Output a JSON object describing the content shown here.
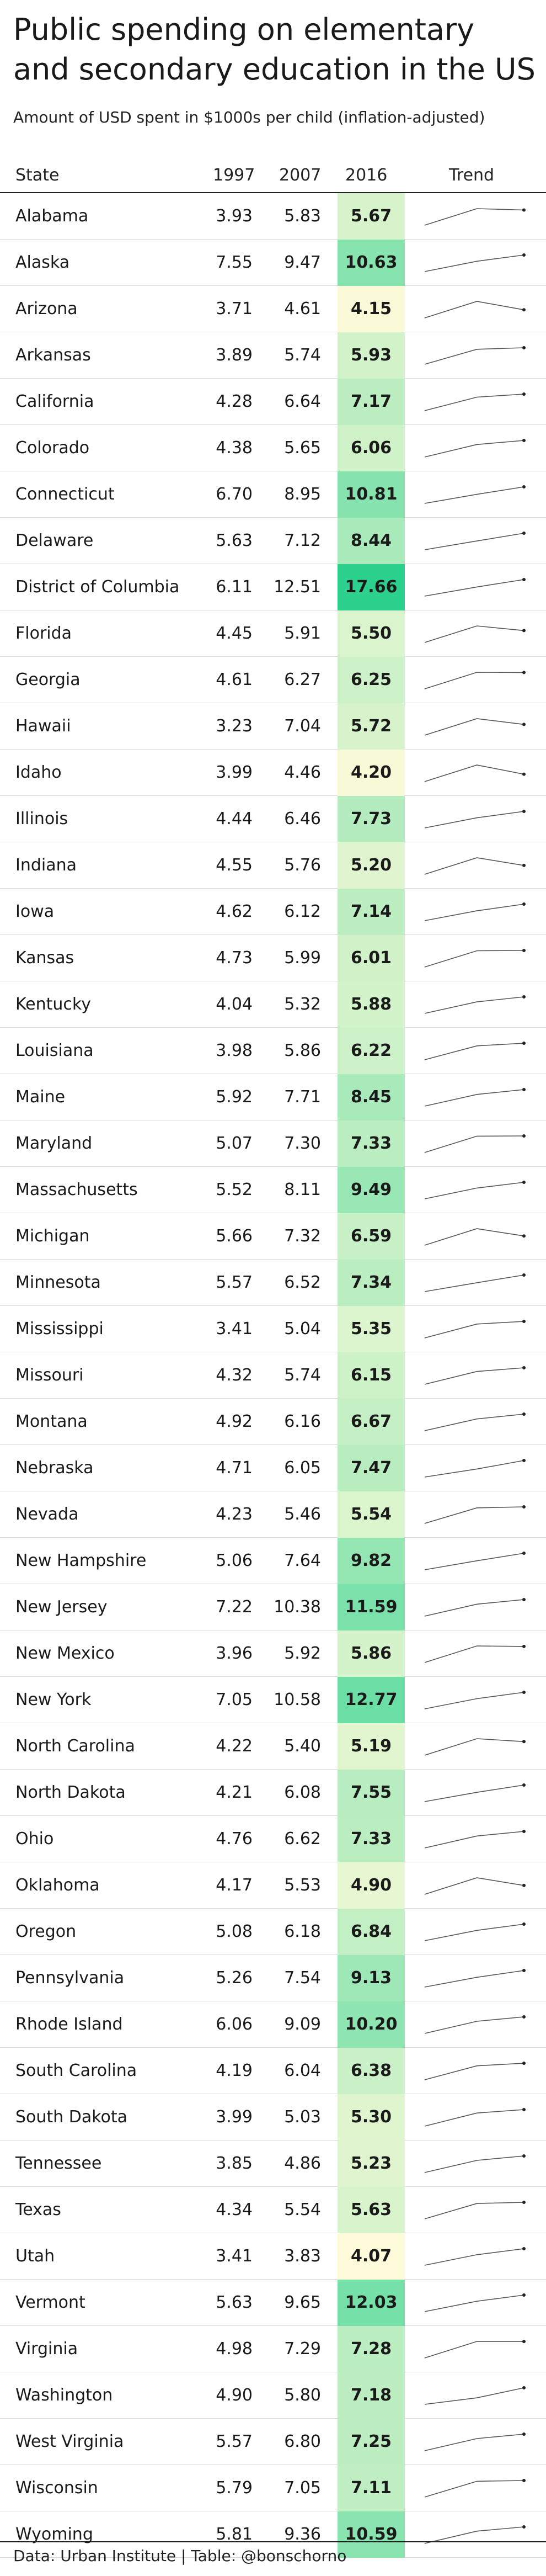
{
  "title": "Public spending on elementary and secondary education in the US",
  "subtitle": "Amount of USD spent in $1000s per child (inflation-adjusted)",
  "columns": {
    "state": "State",
    "y1997": "1997",
    "y2007": "2007",
    "y2016": "2016",
    "trend": "Trend"
  },
  "footer": "Data: Urban Institute | Table: @bonschorno",
  "colors": {
    "low": "#fdfbd9",
    "high": "#2cd18e",
    "line": "#555555",
    "rule": "#222222"
  },
  "chart_data": {
    "type": "table",
    "columns": [
      "State",
      "1997",
      "2007",
      "2016",
      "Trend"
    ],
    "highlight_column": "2016",
    "rows": [
      {
        "state": "Alabama",
        "y1997": "3.93",
        "y2007": "5.83",
        "y2016": "5.67"
      },
      {
        "state": "Alaska",
        "y1997": "7.55",
        "y2007": "9.47",
        "y2016": "10.63"
      },
      {
        "state": "Arizona",
        "y1997": "3.71",
        "y2007": "4.61",
        "y2016": "4.15"
      },
      {
        "state": "Arkansas",
        "y1997": "3.89",
        "y2007": "5.74",
        "y2016": "5.93"
      },
      {
        "state": "California",
        "y1997": "4.28",
        "y2007": "6.64",
        "y2016": "7.17"
      },
      {
        "state": "Colorado",
        "y1997": "4.38",
        "y2007": "5.65",
        "y2016": "6.06"
      },
      {
        "state": "Connecticut",
        "y1997": "6.70",
        "y2007": "8.95",
        "y2016": "10.81"
      },
      {
        "state": "Delaware",
        "y1997": "5.63",
        "y2007": "7.12",
        "y2016": "8.44"
      },
      {
        "state": "District of Columbia",
        "y1997": "6.11",
        "y2007": "12.51",
        "y2016": "17.66"
      },
      {
        "state": "Florida",
        "y1997": "4.45",
        "y2007": "5.91",
        "y2016": "5.50"
      },
      {
        "state": "Georgia",
        "y1997": "4.61",
        "y2007": "6.27",
        "y2016": "6.25"
      },
      {
        "state": "Hawaii",
        "y1997": "3.23",
        "y2007": "7.04",
        "y2016": "5.72"
      },
      {
        "state": "Idaho",
        "y1997": "3.99",
        "y2007": "4.46",
        "y2016": "4.20"
      },
      {
        "state": "Illinois",
        "y1997": "4.44",
        "y2007": "6.46",
        "y2016": "7.73"
      },
      {
        "state": "Indiana",
        "y1997": "4.55",
        "y2007": "5.76",
        "y2016": "5.20"
      },
      {
        "state": "Iowa",
        "y1997": "4.62",
        "y2007": "6.12",
        "y2016": "7.14"
      },
      {
        "state": "Kansas",
        "y1997": "4.73",
        "y2007": "5.99",
        "y2016": "6.01"
      },
      {
        "state": "Kentucky",
        "y1997": "4.04",
        "y2007": "5.32",
        "y2016": "5.88"
      },
      {
        "state": "Louisiana",
        "y1997": "3.98",
        "y2007": "5.86",
        "y2016": "6.22"
      },
      {
        "state": "Maine",
        "y1997": "5.92",
        "y2007": "7.71",
        "y2016": "8.45"
      },
      {
        "state": "Maryland",
        "y1997": "5.07",
        "y2007": "7.30",
        "y2016": "7.33"
      },
      {
        "state": "Massachusetts",
        "y1997": "5.52",
        "y2007": "8.11",
        "y2016": "9.49"
      },
      {
        "state": "Michigan",
        "y1997": "5.66",
        "y2007": "7.32",
        "y2016": "6.59"
      },
      {
        "state": "Minnesota",
        "y1997": "5.57",
        "y2007": "6.52",
        "y2016": "7.34"
      },
      {
        "state": "Mississippi",
        "y1997": "3.41",
        "y2007": "5.04",
        "y2016": "5.35"
      },
      {
        "state": "Missouri",
        "y1997": "4.32",
        "y2007": "5.74",
        "y2016": "6.15"
      },
      {
        "state": "Montana",
        "y1997": "4.92",
        "y2007": "6.16",
        "y2016": "6.67"
      },
      {
        "state": "Nebraska",
        "y1997": "4.71",
        "y2007": "6.05",
        "y2016": "7.47"
      },
      {
        "state": "Nevada",
        "y1997": "4.23",
        "y2007": "5.46",
        "y2016": "5.54"
      },
      {
        "state": "New Hampshire",
        "y1997": "5.06",
        "y2007": "7.64",
        "y2016": "9.82"
      },
      {
        "state": "New Jersey",
        "y1997": "7.22",
        "y2007": "10.38",
        "y2016": "11.59"
      },
      {
        "state": "New Mexico",
        "y1997": "3.96",
        "y2007": "5.92",
        "y2016": "5.86"
      },
      {
        "state": "New York",
        "y1997": "7.05",
        "y2007": "10.58",
        "y2016": "12.77"
      },
      {
        "state": "North Carolina",
        "y1997": "4.22",
        "y2007": "5.40",
        "y2016": "5.19"
      },
      {
        "state": "North Dakota",
        "y1997": "4.21",
        "y2007": "6.08",
        "y2016": "7.55"
      },
      {
        "state": "Ohio",
        "y1997": "4.76",
        "y2007": "6.62",
        "y2016": "7.33"
      },
      {
        "state": "Oklahoma",
        "y1997": "4.17",
        "y2007": "5.53",
        "y2016": "4.90"
      },
      {
        "state": "Oregon",
        "y1997": "5.08",
        "y2007": "6.18",
        "y2016": "6.84"
      },
      {
        "state": "Pennsylvania",
        "y1997": "5.26",
        "y2007": "7.54",
        "y2016": "9.13"
      },
      {
        "state": "Rhode Island",
        "y1997": "6.06",
        "y2007": "9.09",
        "y2016": "10.20"
      },
      {
        "state": "South Carolina",
        "y1997": "4.19",
        "y2007": "6.04",
        "y2016": "6.38"
      },
      {
        "state": "South Dakota",
        "y1997": "3.99",
        "y2007": "5.03",
        "y2016": "5.30"
      },
      {
        "state": "Tennessee",
        "y1997": "3.85",
        "y2007": "4.86",
        "y2016": "5.23"
      },
      {
        "state": "Texas",
        "y1997": "4.34",
        "y2007": "5.54",
        "y2016": "5.63"
      },
      {
        "state": "Utah",
        "y1997": "3.41",
        "y2007": "3.83",
        "y2016": "4.07"
      },
      {
        "state": "Vermont",
        "y1997": "5.63",
        "y2007": "9.65",
        "y2016": "12.03"
      },
      {
        "state": "Virginia",
        "y1997": "4.98",
        "y2007": "7.29",
        "y2016": "7.28"
      },
      {
        "state": "Washington",
        "y1997": "4.90",
        "y2007": "5.80",
        "y2016": "7.18"
      },
      {
        "state": "West Virginia",
        "y1997": "5.57",
        "y2007": "6.80",
        "y2016": "7.25"
      },
      {
        "state": "Wisconsin",
        "y1997": "5.79",
        "y2007": "7.05",
        "y2016": "7.11"
      },
      {
        "state": "Wyoming",
        "y1997": "5.81",
        "y2007": "9.36",
        "y2016": "10.59"
      }
    ]
  }
}
